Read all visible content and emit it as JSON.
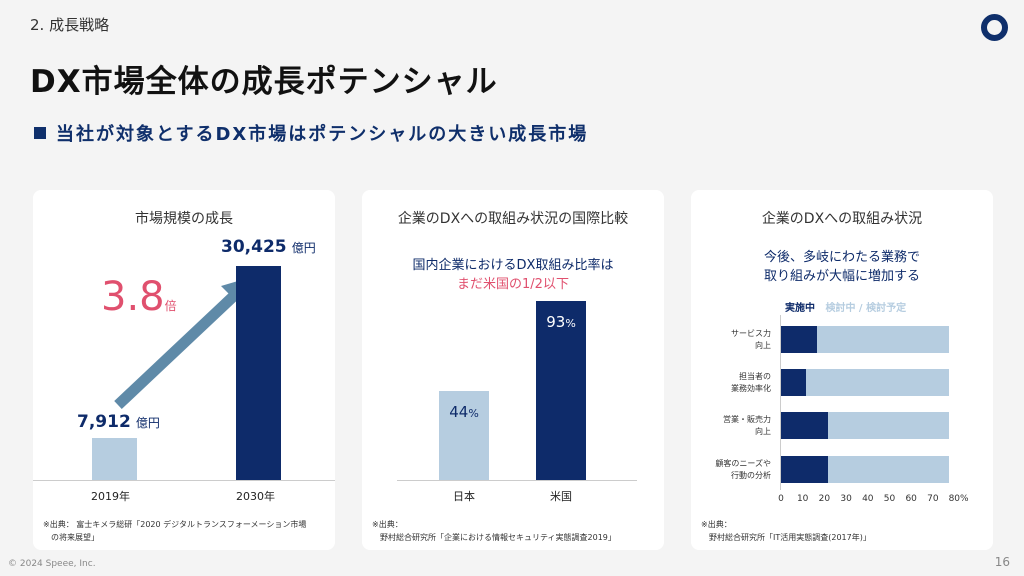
{
  "header": {
    "section": "2. 成長戦略",
    "title": "DX市場全体の成長ポテンシャル",
    "subtitle": "当社が対象とするDX市場はポテンシャルの大きい成長市場"
  },
  "footer": {
    "copyright": "© 2024 Speee, Inc.",
    "page": "16"
  },
  "colors": {
    "navy": "#0e2b6a",
    "light": "#b6cde0",
    "pink": "#e0506e",
    "arrow": "#5f8aa8"
  },
  "chart_data": [
    {
      "type": "bar",
      "title": "市場規模の成長",
      "categories": [
        "2019年",
        "2030年"
      ],
      "values": [
        7912,
        30425
      ],
      "value_labels": [
        "7,912",
        "30,425"
      ],
      "unit": "億円",
      "growth": "3.8",
      "growth_unit": "倍",
      "source": [
        "※出典： 富士キメラ総研「2020 デジタルトランスフォーメーション市場",
        "の将来展望」"
      ]
    },
    {
      "type": "bar",
      "title": "企業のDXへの取組み状況の国際比較",
      "headline": [
        "国内企業におけるDX取組み比率は",
        "まだ米国の1/2以下"
      ],
      "categories": [
        "日本",
        "米国"
      ],
      "values": [
        44,
        93
      ],
      "unit": "%",
      "ylim": [
        0,
        100
      ],
      "source": [
        "※出典：",
        "野村総合研究所「企業における情報セキュリティ実態調査2019」"
      ]
    },
    {
      "type": "bar",
      "orientation": "horizontal",
      "stacked": true,
      "title": "企業のDXへの取組み状況",
      "headline": [
        "今後、多岐にわたる業務で",
        "取り組みが大幅に増加する"
      ],
      "categories": [
        [
          "サービス力",
          "向上"
        ],
        [
          "担当者の",
          "業務効率化"
        ],
        [
          "営業・販売力",
          "向上"
        ],
        [
          "顧客のニーズや",
          "行動の分析"
        ]
      ],
      "series": [
        {
          "name": "実施中",
          "values": [
            16.5,
            11.5,
            21.5,
            21.5
          ]
        },
        {
          "name": "検討中 / 検討予定",
          "values": [
            61,
            66,
            56,
            56
          ]
        }
      ],
      "xticks": [
        "0",
        "10",
        "20",
        "30",
        "40",
        "50",
        "60",
        "70",
        "80%"
      ],
      "xlim": [
        0,
        80
      ],
      "source": [
        "※出典：",
        "野村総合研究所「IT活用実態調査(2017年)」"
      ]
    }
  ]
}
